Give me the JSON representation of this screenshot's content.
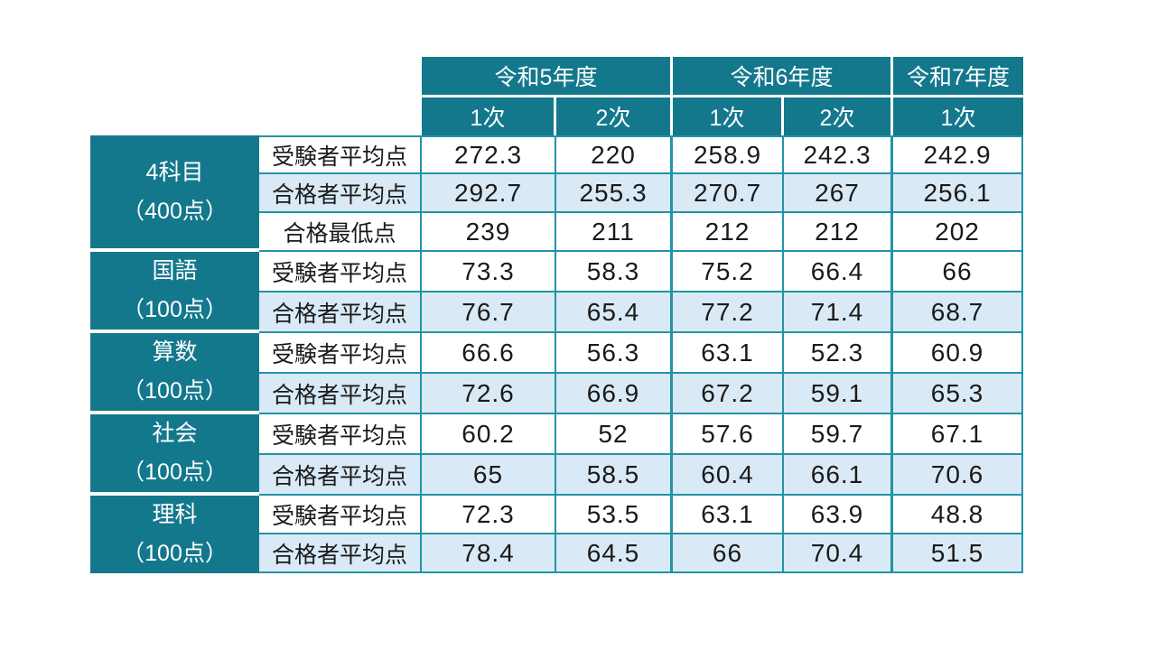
{
  "colors": {
    "teal_fill": "#14788D",
    "cell_border": "#2194A6",
    "highlight_row": "#D9E9F5",
    "header_text": "#FFFFFF",
    "body_text": "#1A1A1A",
    "background": "#FFFFFF"
  },
  "chart_data": {
    "type": "table",
    "year_headers": [
      {
        "label": "令和5年度",
        "colspan": 2
      },
      {
        "label": "令和6年度",
        "colspan": 2
      },
      {
        "label": "令和7年度",
        "colspan": 1
      }
    ],
    "session_headers": [
      "1次",
      "2次",
      "1次",
      "2次",
      "1次"
    ],
    "groups": [
      {
        "subject": "4科目",
        "max_score": "（400点）",
        "rows": [
          {
            "label": "受験者平均点",
            "highlight": false,
            "values": [
              "272.3",
              "220",
              "258.9",
              "242.3",
              "242.9"
            ]
          },
          {
            "label": "合格者平均点",
            "highlight": true,
            "values": [
              "292.7",
              "255.3",
              "270.7",
              "267",
              "256.1"
            ]
          },
          {
            "label": "合格最低点",
            "highlight": false,
            "values": [
              "239",
              "211",
              "212",
              "212",
              "202"
            ]
          }
        ]
      },
      {
        "subject": "国語",
        "max_score": "（100点）",
        "rows": [
          {
            "label": "受験者平均点",
            "highlight": false,
            "values": [
              "73.3",
              "58.3",
              "75.2",
              "66.4",
              "66"
            ]
          },
          {
            "label": "合格者平均点",
            "highlight": true,
            "values": [
              "76.7",
              "65.4",
              "77.2",
              "71.4",
              "68.7"
            ]
          }
        ]
      },
      {
        "subject": "算数",
        "max_score": "（100点）",
        "rows": [
          {
            "label": "受験者平均点",
            "highlight": false,
            "values": [
              "66.6",
              "56.3",
              "63.1",
              "52.3",
              "60.9"
            ]
          },
          {
            "label": "合格者平均点",
            "highlight": true,
            "values": [
              "72.6",
              "66.9",
              "67.2",
              "59.1",
              "65.3"
            ]
          }
        ]
      },
      {
        "subject": "社会",
        "max_score": "（100点）",
        "rows": [
          {
            "label": "受験者平均点",
            "highlight": false,
            "values": [
              "60.2",
              "52",
              "57.6",
              "59.7",
              "67.1"
            ]
          },
          {
            "label": "合格者平均点",
            "highlight": true,
            "values": [
              "65",
              "58.5",
              "60.4",
              "66.1",
              "70.6"
            ]
          }
        ]
      },
      {
        "subject": "理科",
        "max_score": "（100点）",
        "rows": [
          {
            "label": "受験者平均点",
            "highlight": false,
            "values": [
              "72.3",
              "53.5",
              "63.1",
              "63.9",
              "48.8"
            ]
          },
          {
            "label": "合格者平均点",
            "highlight": true,
            "values": [
              "78.4",
              "64.5",
              "66",
              "70.4",
              "51.5"
            ]
          }
        ]
      }
    ]
  }
}
